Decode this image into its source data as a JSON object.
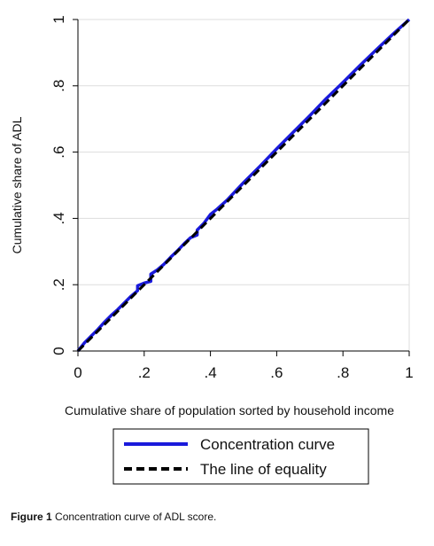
{
  "chart_data": {
    "type": "line",
    "xlabel": "Cumulative share of population sorted by household income",
    "ylabel": "Cumulative share of ADL",
    "xlim": [
      0,
      1
    ],
    "ylim": [
      0,
      1
    ],
    "x_ticks": [
      {
        "value": 0,
        "label": "0"
      },
      {
        "value": 0.2,
        "label": ".2"
      },
      {
        "value": 0.4,
        "label": ".4"
      },
      {
        "value": 0.6,
        "label": ".6"
      },
      {
        "value": 0.8,
        "label": ".8"
      },
      {
        "value": 1,
        "label": "1"
      }
    ],
    "y_ticks": [
      {
        "value": 0,
        "label": "0"
      },
      {
        "value": 0.2,
        "label": ".2"
      },
      {
        "value": 0.4,
        "label": ".4"
      },
      {
        "value": 0.6,
        "label": ".6"
      },
      {
        "value": 0.8,
        "label": ".8"
      },
      {
        "value": 1,
        "label": "1"
      }
    ],
    "grid": "horizontal",
    "legend_position": "bottom",
    "series": [
      {
        "name": "Concentration curve",
        "color": "#1a1adb",
        "style": "solid",
        "x": [
          0,
          0.02,
          0.04,
          0.06,
          0.08,
          0.1,
          0.12,
          0.14,
          0.16,
          0.18,
          0.18,
          0.2,
          0.22,
          0.22,
          0.24,
          0.26,
          0.28,
          0.3,
          0.32,
          0.34,
          0.36,
          0.36,
          0.38,
          0.4,
          0.42,
          0.45,
          0.5,
          0.55,
          0.6,
          0.65,
          0.7,
          0.75,
          0.8,
          0.85,
          0.9,
          0.95,
          1
        ],
        "y": [
          0,
          0.025,
          0.045,
          0.065,
          0.087,
          0.107,
          0.125,
          0.145,
          0.165,
          0.182,
          0.197,
          0.205,
          0.21,
          0.232,
          0.245,
          0.262,
          0.283,
          0.302,
          0.323,
          0.342,
          0.35,
          0.365,
          0.385,
          0.412,
          0.428,
          0.455,
          0.508,
          0.558,
          0.61,
          0.66,
          0.71,
          0.762,
          0.81,
          0.86,
          0.908,
          0.955,
          1
        ]
      },
      {
        "name": "The line of equality",
        "color": "#000000",
        "style": "dashed",
        "x": [
          0,
          1
        ],
        "y": [
          0,
          1
        ]
      }
    ]
  },
  "caption": {
    "label": "Figure 1",
    "text": "Concentration curve of ADL score."
  }
}
